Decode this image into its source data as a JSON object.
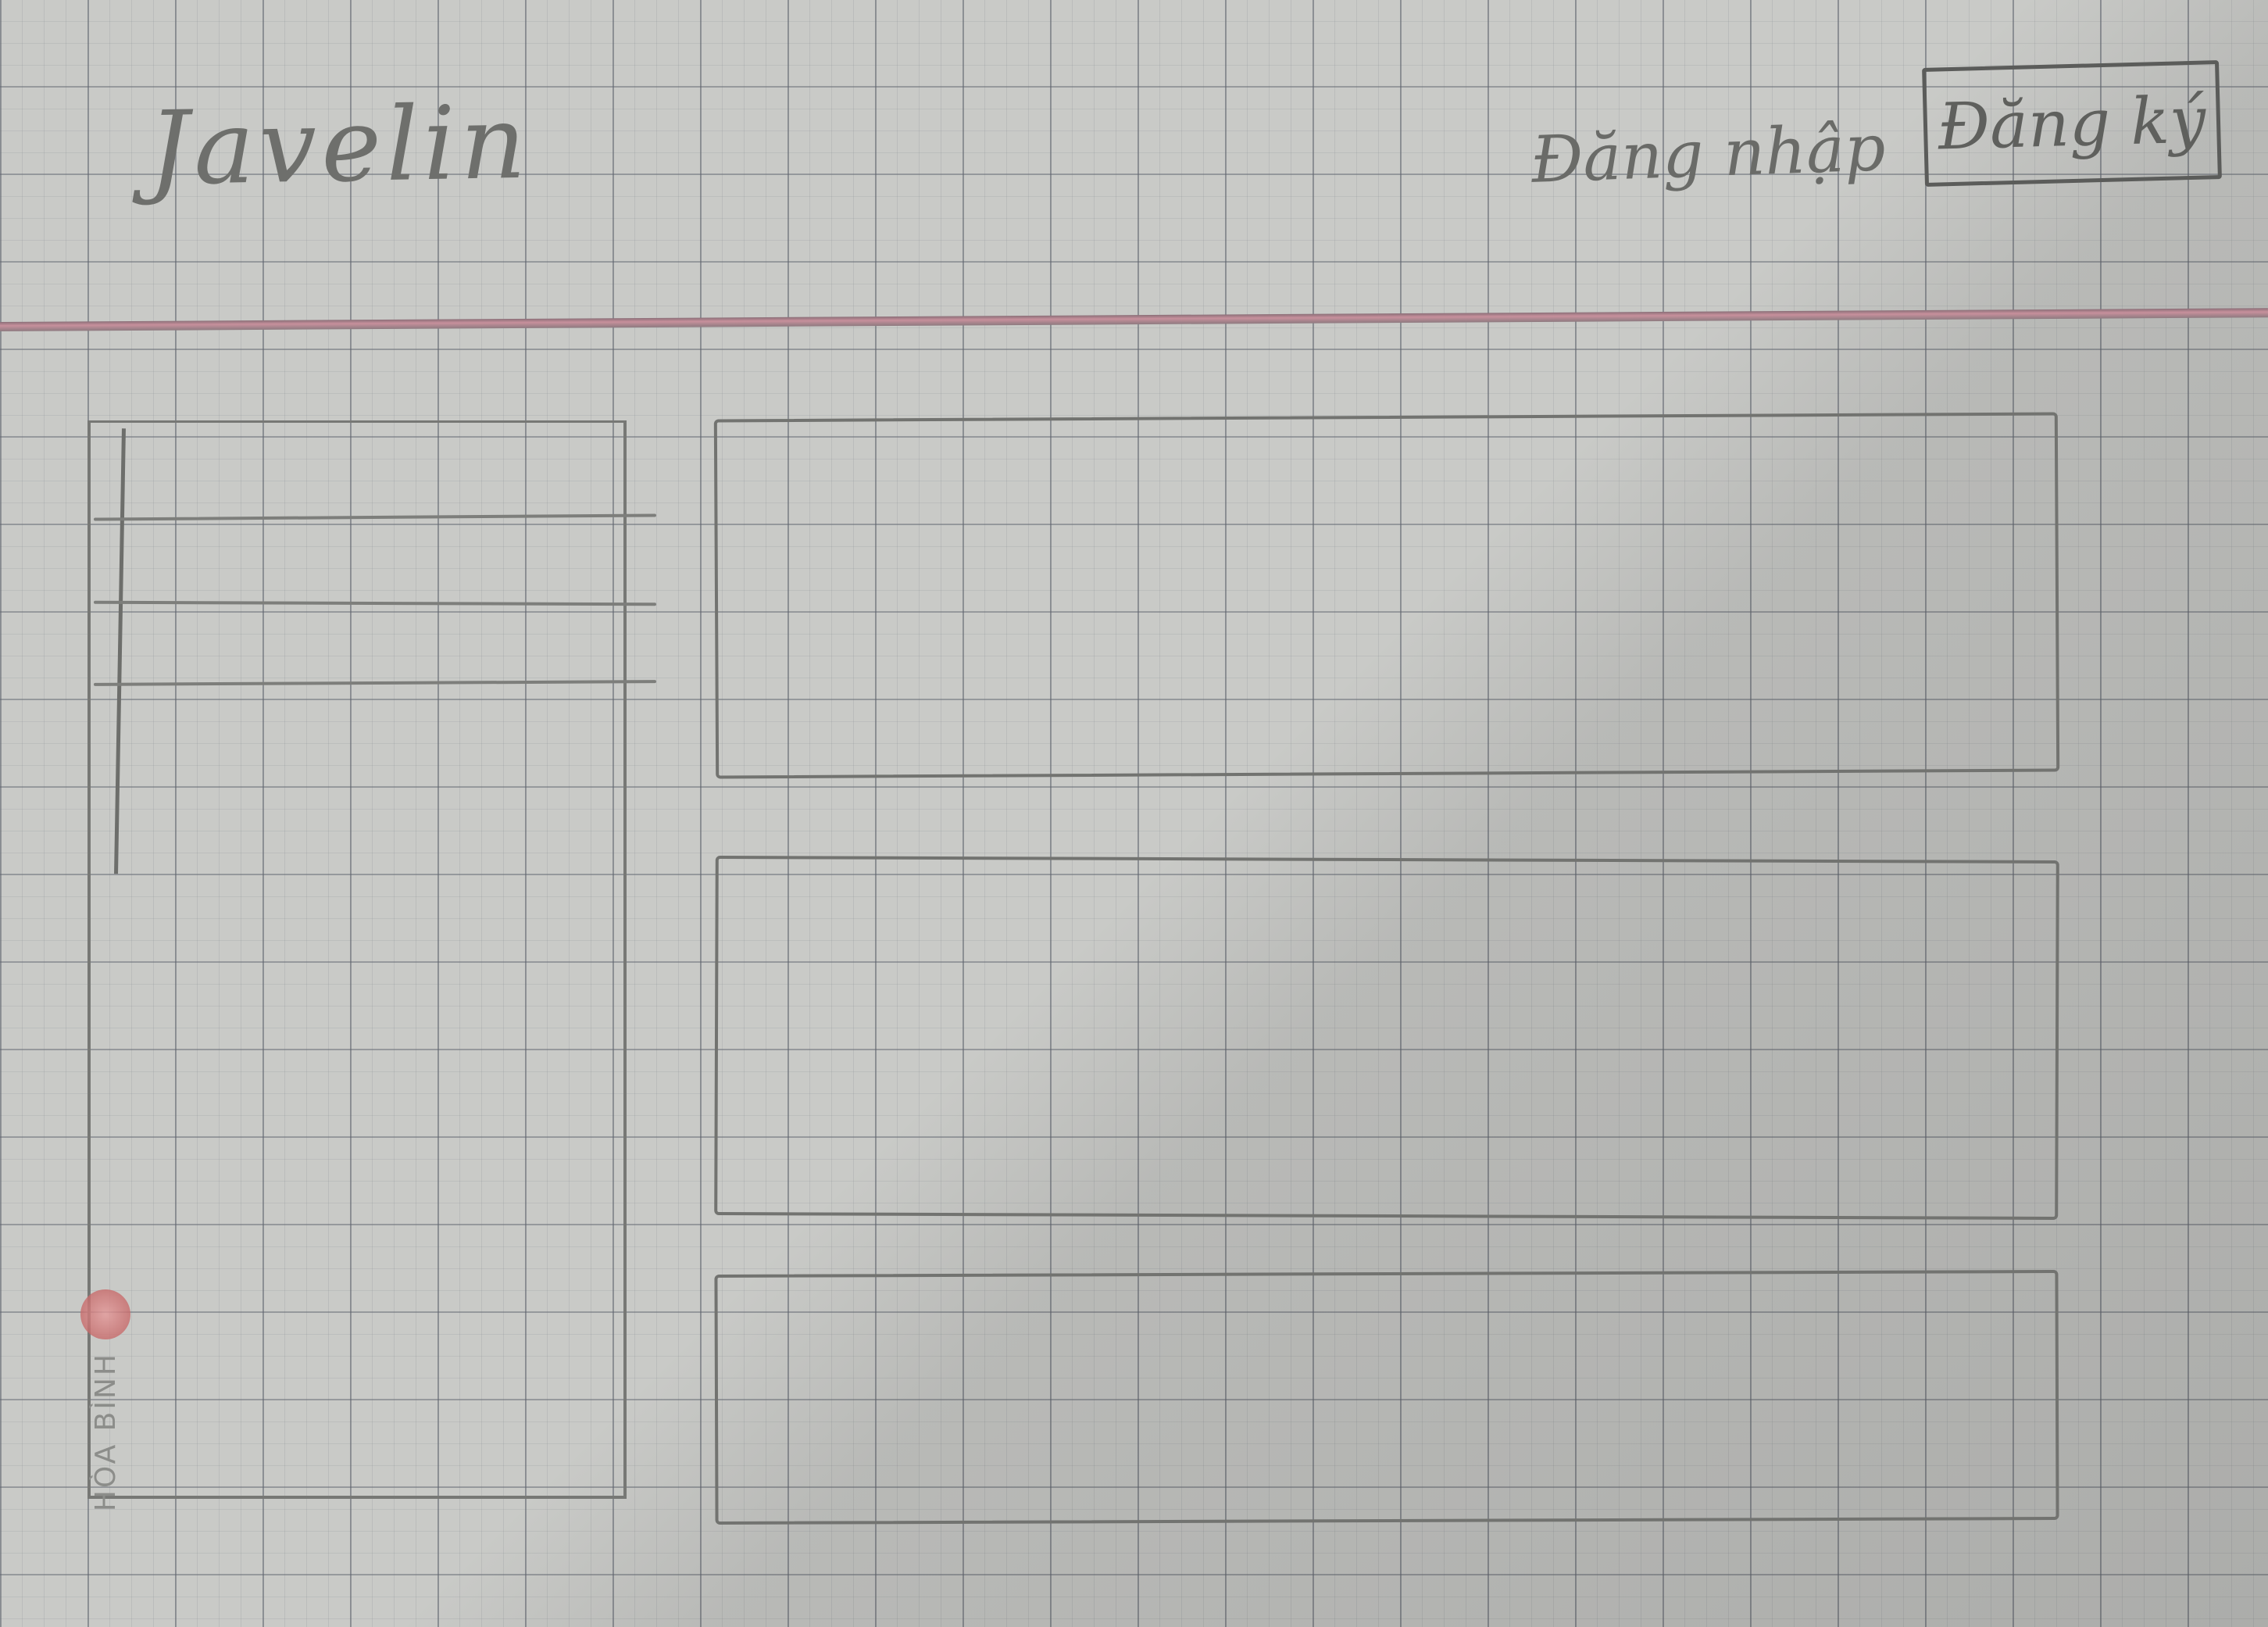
{
  "header": {
    "logo_text": "Javelin",
    "login_label": "Đăng nhập",
    "signup_label": "Đăng ký"
  },
  "sidebar": {
    "items": [
      "",
      "",
      ""
    ]
  },
  "main": {
    "cards": [
      "",
      "",
      ""
    ]
  },
  "watermark": {
    "brand_text": "HÒA BÌNH",
    "seal_color": "#c86b6b"
  },
  "colors": {
    "divider_accent": "#c7909c",
    "pencil": "#727370"
  }
}
